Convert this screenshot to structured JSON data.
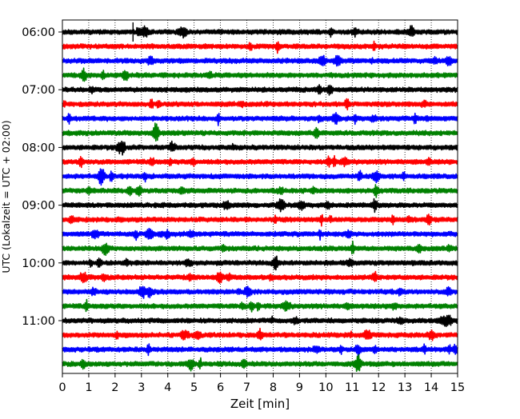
{
  "chart_data": {
    "type": "line",
    "title": "",
    "xlabel": "Zeit  [min]",
    "ylabel": "UTC (Lokalzeit = UTC + 02:00)",
    "xlim": [
      0,
      15
    ],
    "x_ticks": [
      "0",
      "1",
      "2",
      "3",
      "4",
      "5",
      "6",
      "7",
      "8",
      "9",
      "10",
      "11",
      "12",
      "13",
      "14",
      "15"
    ],
    "y_tick_labels": [
      "06:00",
      "07:00",
      "08:00",
      "09:00",
      "10:00",
      "11:00"
    ],
    "trace_interval_minutes": 15,
    "start_time": "06:00",
    "trace_count": 24,
    "trace_colors": [
      "#000000",
      "#ff0000",
      "#0000ff",
      "#008000"
    ],
    "grid": "vertical dotted lines at each minute",
    "legend": "none"
  }
}
